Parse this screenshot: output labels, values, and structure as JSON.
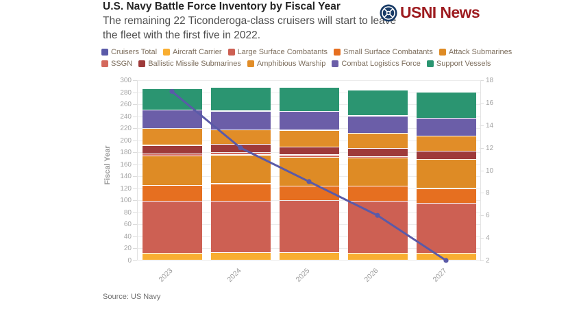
{
  "header": {
    "title": "U.S. Navy Battle Force Inventory by Fiscal Year",
    "subtitle": "The remaining 22 Ticonderoga-class cruisers will start to leave the fleet with the first five in 2022."
  },
  "logo": {
    "text": "USNI News",
    "text_color": "#9d1b1f",
    "emblem_color": "#173a66"
  },
  "legend": {
    "rows": [
      [
        {
          "label": "Cruisers Total",
          "color": "#5a5aa8"
        },
        {
          "label": "Aircraft Carrier",
          "color": "#f9ae31"
        },
        {
          "label": "Large Surface Combatants",
          "color": "#cd6053"
        },
        {
          "label": "Small Surface Combatants",
          "color": "#e66f20"
        },
        {
          "label": "Attack Submarines",
          "color": "#de8b25"
        }
      ],
      [
        {
          "label": "SSGN",
          "color": "#d4685c"
        },
        {
          "label": "Ballistic Missile Submarines",
          "color": "#9e3a3a"
        },
        {
          "label": "Amphibious Warship",
          "color": "#e18d28"
        },
        {
          "label": "Combat Logistics Force",
          "color": "#6b5ea8"
        },
        {
          "label": "Support Vessels",
          "color": "#2b9571"
        }
      ]
    ]
  },
  "chart_data": {
    "type": "bar",
    "subtype": "stacked-bars-with-line-overlay",
    "categories": [
      "2023",
      "2024",
      "2025",
      "2026",
      "2027"
    ],
    "series": [
      {
        "name": "Aircraft Carrier",
        "color": "#f9ae31",
        "values": [
          11,
          12,
          12,
          11,
          11
        ]
      },
      {
        "name": "Large Surface Combatants",
        "color": "#cd6053",
        "values": [
          87,
          86,
          87,
          87,
          84
        ]
      },
      {
        "name": "Small Surface Combatants",
        "color": "#e66f20",
        "values": [
          26,
          29,
          24,
          25,
          24
        ]
      },
      {
        "name": "Attack Submarines",
        "color": "#de8b25",
        "values": [
          49,
          48,
          48,
          47,
          49
        ]
      },
      {
        "name": "SSGN",
        "color": "#d4685c",
        "values": [
          4,
          4,
          4,
          2,
          0
        ]
      },
      {
        "name": "Ballistic Missile Submarines",
        "color": "#9e3a3a",
        "values": [
          14,
          14,
          13,
          14,
          13
        ]
      },
      {
        "name": "Amphibious Warship",
        "color": "#e18d28",
        "values": [
          28,
          24,
          28,
          25,
          25
        ]
      },
      {
        "name": "Combat Logistics Force",
        "color": "#6b5ea8",
        "values": [
          31,
          31,
          31,
          29,
          30
        ]
      },
      {
        "name": "Support Vessels",
        "color": "#2b9571",
        "values": [
          35,
          39,
          40,
          43,
          44
        ]
      }
    ],
    "totals": [
      285,
      287,
      287,
      283,
      280
    ],
    "line_series": {
      "name": "Cruisers Total",
      "color": "#5a5aa8",
      "axis": "right",
      "values": [
        17,
        12,
        9,
        6,
        2
      ]
    },
    "left_axis": {
      "label": "Fiscal Year",
      "min": 0,
      "max": 300,
      "step": 20
    },
    "right_axis": {
      "min": 2,
      "max": 18,
      "step": 2
    },
    "grid": true,
    "legend_position": "top"
  },
  "source": "Source: US Navy"
}
